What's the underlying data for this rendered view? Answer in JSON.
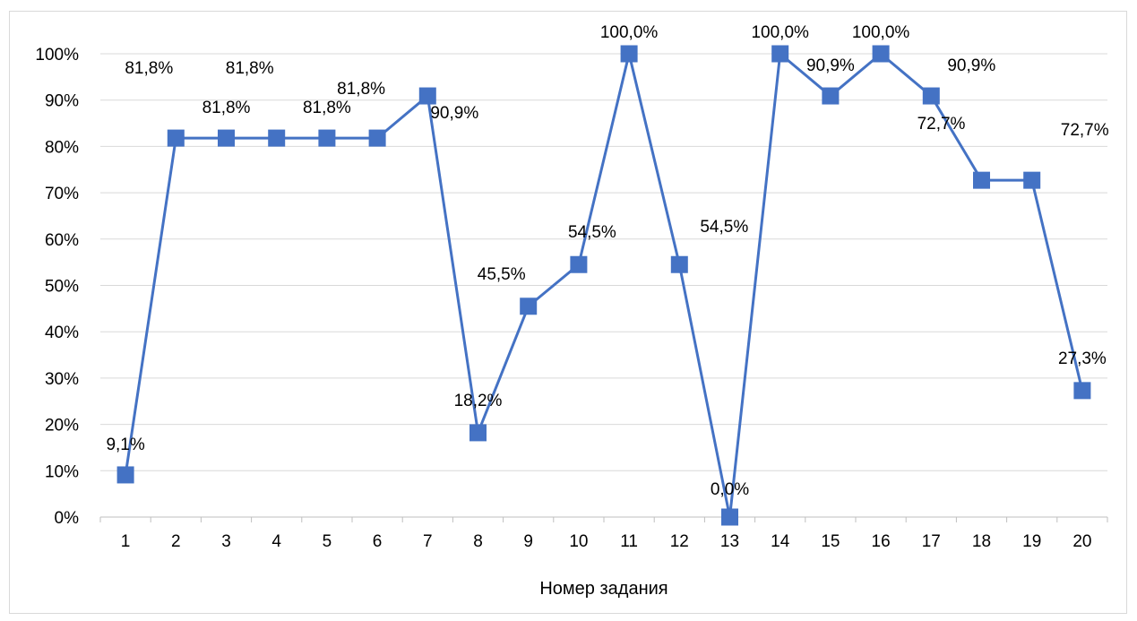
{
  "chart_data": {
    "type": "line",
    "title": "",
    "xlabel": "Номер задания",
    "ylabel": "",
    "categories": [
      "1",
      "2",
      "3",
      "4",
      "5",
      "6",
      "7",
      "8",
      "9",
      "10",
      "11",
      "12",
      "13",
      "14",
      "15",
      "16",
      "17",
      "18",
      "19",
      "20"
    ],
    "series": [
      {
        "values": [
          9.1,
          81.8,
          81.8,
          81.8,
          81.8,
          81.8,
          90.9,
          18.2,
          45.5,
          54.5,
          100.0,
          54.5,
          0.0,
          100.0,
          90.9,
          100.0,
          90.9,
          72.7,
          72.7,
          27.3
        ],
        "labels": [
          "9,1%",
          "81,8%",
          "81,8%",
          "81,8%",
          "81,8%",
          "81,8%",
          "90,9%",
          "18,2%",
          "45,5%",
          "54,5%",
          "100,0%",
          "54,5%",
          "0,0%",
          "100,0%",
          "90,9%",
          "100,0%",
          "90,9%",
          "72,7%",
          "72,7%",
          "27,3%"
        ],
        "color": "#4472c4"
      }
    ],
    "ylim": [
      0,
      100
    ],
    "yticks": [
      "0%",
      "10%",
      "20%",
      "30%",
      "40%",
      "50%",
      "60%",
      "70%",
      "80%",
      "90%",
      "100%"
    ],
    "grid": true,
    "gridColor": "#d9d9d9",
    "marker": "square"
  }
}
